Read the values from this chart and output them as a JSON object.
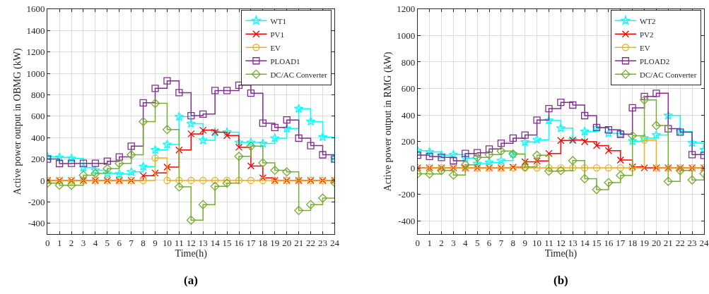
{
  "chart_data": [
    {
      "type": "step",
      "xlabel": "Time(h)",
      "ylabel": "Active power output in OBMG (kW)",
      "annotations": [
        "(a)"
      ],
      "x": [
        0,
        1,
        2,
        3,
        4,
        5,
        6,
        7,
        8,
        9,
        10,
        11,
        12,
        13,
        14,
        15,
        16,
        17,
        18,
        19,
        20,
        21,
        22,
        23,
        24
      ],
      "xlim": [
        0,
        24
      ],
      "xticks": [
        0,
        1,
        2,
        3,
        4,
        5,
        6,
        7,
        8,
        9,
        10,
        11,
        12,
        13,
        14,
        15,
        16,
        17,
        18,
        19,
        20,
        21,
        22,
        23,
        24
      ],
      "ylim": [
        -500,
        1600
      ],
      "yticks": [
        -400,
        -200,
        0,
        200,
        400,
        600,
        800,
        1000,
        1200,
        1400,
        1600
      ],
      "grid": true,
      "legend": "top right",
      "series": [
        {
          "name": "WT1",
          "color": "#00ffff",
          "marker": "star",
          "values": [
            220,
            215,
            205,
            120,
            95,
            65,
            60,
            80,
            130,
            285,
            335,
            595,
            530,
            375,
            450,
            450,
            355,
            355,
            345,
            395,
            485,
            670,
            550,
            405,
            205
          ]
        },
        {
          "name": "PV1",
          "color": "#ff0000",
          "marker": "cross",
          "values": [
            0,
            0,
            0,
            0,
            0,
            0,
            0,
            0,
            45,
            70,
            125,
            285,
            435,
            470,
            450,
            420,
            310,
            135,
            25,
            0,
            0,
            0,
            0,
            0,
            0
          ]
        },
        {
          "name": "EV",
          "color": "#edb120",
          "marker": "circle",
          "values": [
            0,
            0,
            0,
            0,
            0,
            0,
            0,
            0,
            0,
            210,
            0,
            0,
            0,
            0,
            0,
            0,
            0,
            0,
            0,
            0,
            0,
            0,
            0,
            0,
            0
          ]
        },
        {
          "name": "PLOAD1",
          "color": "#7e2f8e",
          "marker": "square",
          "values": [
            200,
            158,
            160,
            160,
            160,
            180,
            220,
            320,
            725,
            860,
            930,
            820,
            605,
            620,
            840,
            840,
            890,
            815,
            535,
            495,
            565,
            395,
            325,
            240,
            200
          ]
        },
        {
          "name": "DC/AC Converter",
          "color": "#77ac30",
          "marker": "diamond",
          "values": [
            -25,
            -45,
            -45,
            50,
            65,
            110,
            160,
            240,
            550,
            720,
            475,
            -60,
            -370,
            -225,
            -55,
            -25,
            225,
            320,
            165,
            95,
            80,
            -280,
            -225,
            -165,
            -20
          ]
        }
      ]
    },
    {
      "type": "step",
      "xlabel": "Time(h)",
      "ylabel": "Active power output in RMG (kW)",
      "annotations": [
        "(b)"
      ],
      "x": [
        0,
        1,
        2,
        3,
        4,
        5,
        6,
        7,
        8,
        9,
        10,
        11,
        12,
        13,
        14,
        15,
        16,
        17,
        18,
        19,
        20,
        21,
        22,
        23,
        24
      ],
      "xlim": [
        0,
        24
      ],
      "xticks": [
        0,
        1,
        2,
        3,
        4,
        5,
        6,
        7,
        8,
        9,
        10,
        11,
        12,
        13,
        14,
        15,
        16,
        17,
        18,
        19,
        20,
        21,
        22,
        23,
        24
      ],
      "ylim": [
        -500,
        1200
      ],
      "yticks": [
        -400,
        -200,
        0,
        200,
        400,
        600,
        800,
        1000,
        1200
      ],
      "grid": true,
      "legend": "top right",
      "series": [
        {
          "name": "WT2",
          "color": "#00ffff",
          "marker": "star",
          "values": [
            130,
            120,
            96,
            100,
            73,
            32,
            40,
            55,
            105,
            195,
            213,
            358,
            300,
            212,
            275,
            303,
            261,
            252,
            202,
            225,
            248,
            396,
            275,
            189,
            136
          ]
        },
        {
          "name": "PV2",
          "color": "#ff0000",
          "marker": "cross",
          "values": [
            0,
            0,
            0,
            0,
            0,
            0,
            0,
            0,
            5,
            46,
            52,
            109,
            207,
            210,
            198,
            168,
            130,
            59,
            7,
            0,
            0,
            0,
            0,
            0,
            0
          ]
        },
        {
          "name": "EV",
          "color": "#edb120",
          "marker": "circle",
          "values": [
            0,
            0,
            0,
            0,
            0,
            0,
            0,
            0,
            0,
            0,
            0,
            0,
            0,
            0,
            0,
            0,
            0,
            0,
            0,
            210,
            0,
            0,
            0,
            0,
            0
          ]
        },
        {
          "name": "PLOAD2",
          "color": "#7e2f8e",
          "marker": "square",
          "values": [
            96,
            86,
            79,
            54,
            109,
            114,
            143,
            186,
            225,
            248,
            361,
            448,
            495,
            475,
            395,
            305,
            288,
            255,
            454,
            540,
            564,
            296,
            270,
            100,
            95
          ]
        },
        {
          "name": "DC/AC Converter",
          "color": "#77ac30",
          "marker": "diamond",
          "values": [
            -45,
            -46,
            -20,
            -54,
            23,
            79,
            100,
            127,
            104,
            7,
            95,
            -25,
            -21,
            55,
            -82,
            -164,
            -111,
            -57,
            243,
            514,
            320,
            -102,
            -20,
            -91,
            -43
          ]
        }
      ]
    }
  ]
}
